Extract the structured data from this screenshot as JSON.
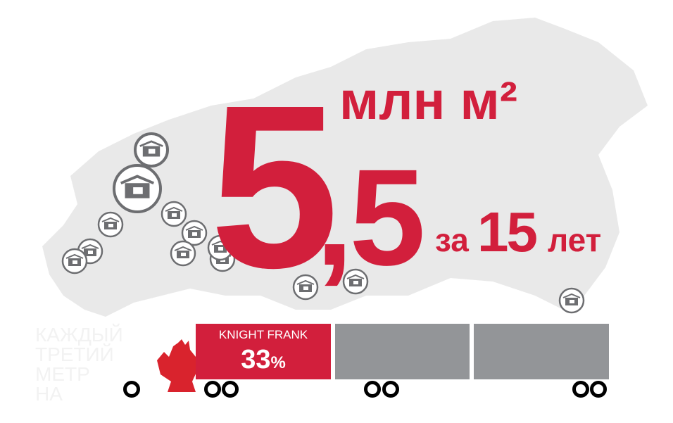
{
  "headline": {
    "number_main": "5",
    "number_decimal": ",5",
    "unit": "млн м²",
    "prefix": "за",
    "years": "15",
    "suffix": "лет"
  },
  "faint_caption": [
    "КАЖДЫЙ",
    "ТРЕТИЙ",
    "МЕТР",
    "НА"
  ],
  "truck": {
    "segments": [
      {
        "label": "KNIGHT FRANK",
        "value": "33",
        "unit": "%",
        "color": "#d21f3c"
      },
      {
        "color": "#939598"
      },
      {
        "color": "#939598"
      }
    ]
  },
  "colors": {
    "accent": "#d21f3c",
    "map": "#e9e9e9",
    "icon": "#6d6e71"
  },
  "icons": {
    "warehouse": "warehouse-icon",
    "emblem": "double-headed-eagle-emblem"
  }
}
